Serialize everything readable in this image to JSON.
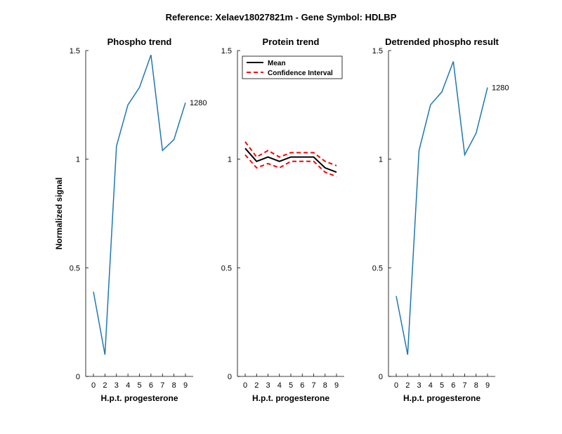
{
  "figure": {
    "suptitle": "Reference:  Xelaev18027821m - Gene Symbol:  HDLBP"
  },
  "colors": {
    "phospho": "#1f77b4",
    "mean": "#000000",
    "ci": "#ff0000"
  },
  "chart_data": [
    {
      "type": "line",
      "title": "Phospho trend",
      "xlabel": "H.p.t. progesterone",
      "ylabel": "Normalized signal",
      "xticks": [
        0,
        2,
        3,
        4,
        5,
        6,
        7,
        8,
        9
      ],
      "ylim": [
        0,
        1.5
      ],
      "yticks": [
        0,
        0.5,
        1,
        1.5
      ],
      "ytick_labels": [
        "0",
        "0.5",
        "1",
        "1.5"
      ],
      "grid": false,
      "series": [
        {
          "values": [
            0.39,
            0.1,
            1.06,
            1.25,
            1.33,
            1.48,
            1.04,
            1.09,
            1.26
          ],
          "color": "#1f77b4",
          "style": "solid"
        }
      ],
      "annotations": [
        {
          "text": "1280",
          "x_index": 8,
          "y": 1.26
        }
      ]
    },
    {
      "type": "line",
      "title": "Protein trend",
      "xlabel": "H.p.t. progesterone",
      "ylabel": "",
      "xticks": [
        0,
        2,
        3,
        4,
        5,
        6,
        7,
        8,
        9
      ],
      "ylim": [
        0,
        1.5
      ],
      "yticks": [
        0,
        0.5,
        1,
        1.5
      ],
      "ytick_labels": [
        "0",
        "0.5",
        "1",
        "1.5"
      ],
      "grid": false,
      "legend": {
        "placement": "top-left",
        "entries": [
          "Mean",
          "Confidence Interval"
        ]
      },
      "series": [
        {
          "name": "Mean",
          "values": [
            1.05,
            0.99,
            1.01,
            0.99,
            1.01,
            1.01,
            1.01,
            0.96,
            0.94
          ],
          "color": "#000000",
          "style": "solid"
        },
        {
          "name": "Confidence Interval",
          "values": [
            1.08,
            1.01,
            1.04,
            1.01,
            1.03,
            1.03,
            1.03,
            0.99,
            0.97
          ],
          "color": "#ff0000",
          "style": "dashed"
        },
        {
          "name": "",
          "values": [
            1.02,
            0.96,
            0.98,
            0.96,
            0.99,
            0.99,
            0.99,
            0.94,
            0.92
          ],
          "color": "#ff0000",
          "style": "dashed"
        }
      ]
    },
    {
      "type": "line",
      "title": "Detrended phospho result",
      "xlabel": "H.p.t. progesterone",
      "ylabel": "",
      "xticks": [
        0,
        2,
        3,
        4,
        5,
        6,
        7,
        8,
        9
      ],
      "ylim": [
        0,
        1.5
      ],
      "yticks": [
        0,
        0.5,
        1,
        1.5
      ],
      "ytick_labels": [
        "0",
        "0.5",
        "1",
        "1.5"
      ],
      "grid": false,
      "series": [
        {
          "values": [
            0.37,
            0.1,
            1.04,
            1.25,
            1.31,
            1.45,
            1.02,
            1.12,
            1.33
          ],
          "color": "#1f77b4",
          "style": "solid"
        }
      ],
      "annotations": [
        {
          "text": "1280",
          "x_index": 8,
          "y": 1.33
        }
      ]
    }
  ]
}
